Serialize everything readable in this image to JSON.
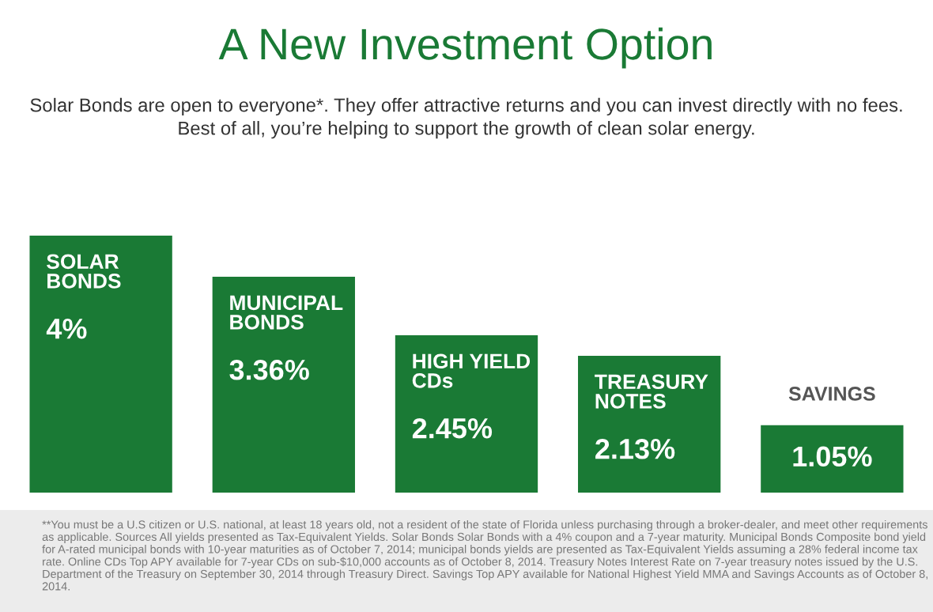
{
  "chart_data": {
    "type": "bar",
    "title": "A New Investment Option",
    "subtitle": "Solar Bonds are open to everyone*. They offer attractive returns and you can invest directly with no fees.\nBest of all, you’re helping to support the growth of clean solar energy.",
    "categories": [
      "SOLAR\nBONDS",
      "MUNICIPAL\nBONDS",
      "HIGH YIELD\nCDs",
      "TREASURY\nNOTES",
      "SAVINGS"
    ],
    "values": [
      4,
      3.36,
      2.45,
      2.13,
      1.05
    ],
    "value_labels": [
      "4%",
      "3.36%",
      "2.45%",
      "2.13%",
      "1.05%"
    ],
    "color": "#1a7a35",
    "annotations": [
      "**You must be a U.S citizen or U.S. national, at least 18 years old, not a resident of the state of Florida unless purchasing through a broker-dealer, and meet other requirements as applicable. Sources All yields presented as Tax-Equivalent Yields. Solar Bonds Solar Bonds with a 4% coupon and a 7-year maturity. Municipal Bonds Composite bond yield for A-rated municipal bonds with 10-year maturities as of October 7, 2014; municipal bonds yields are presented as Tax-Equivalent Yields assuming a 28% federal income tax rate. Online CDs Top APY available for 7-year CDs on sub-$10,000 accounts as of October 8, 2014. Treasury Notes Interest Rate on 7-year treasury notes issued by the U.S. Department of the Treasury on September 30, 2014 through Treasury Direct. Savings Top APY available for National Highest Yield MMA and Savings Accounts as of October 8, 2014."
    ]
  }
}
